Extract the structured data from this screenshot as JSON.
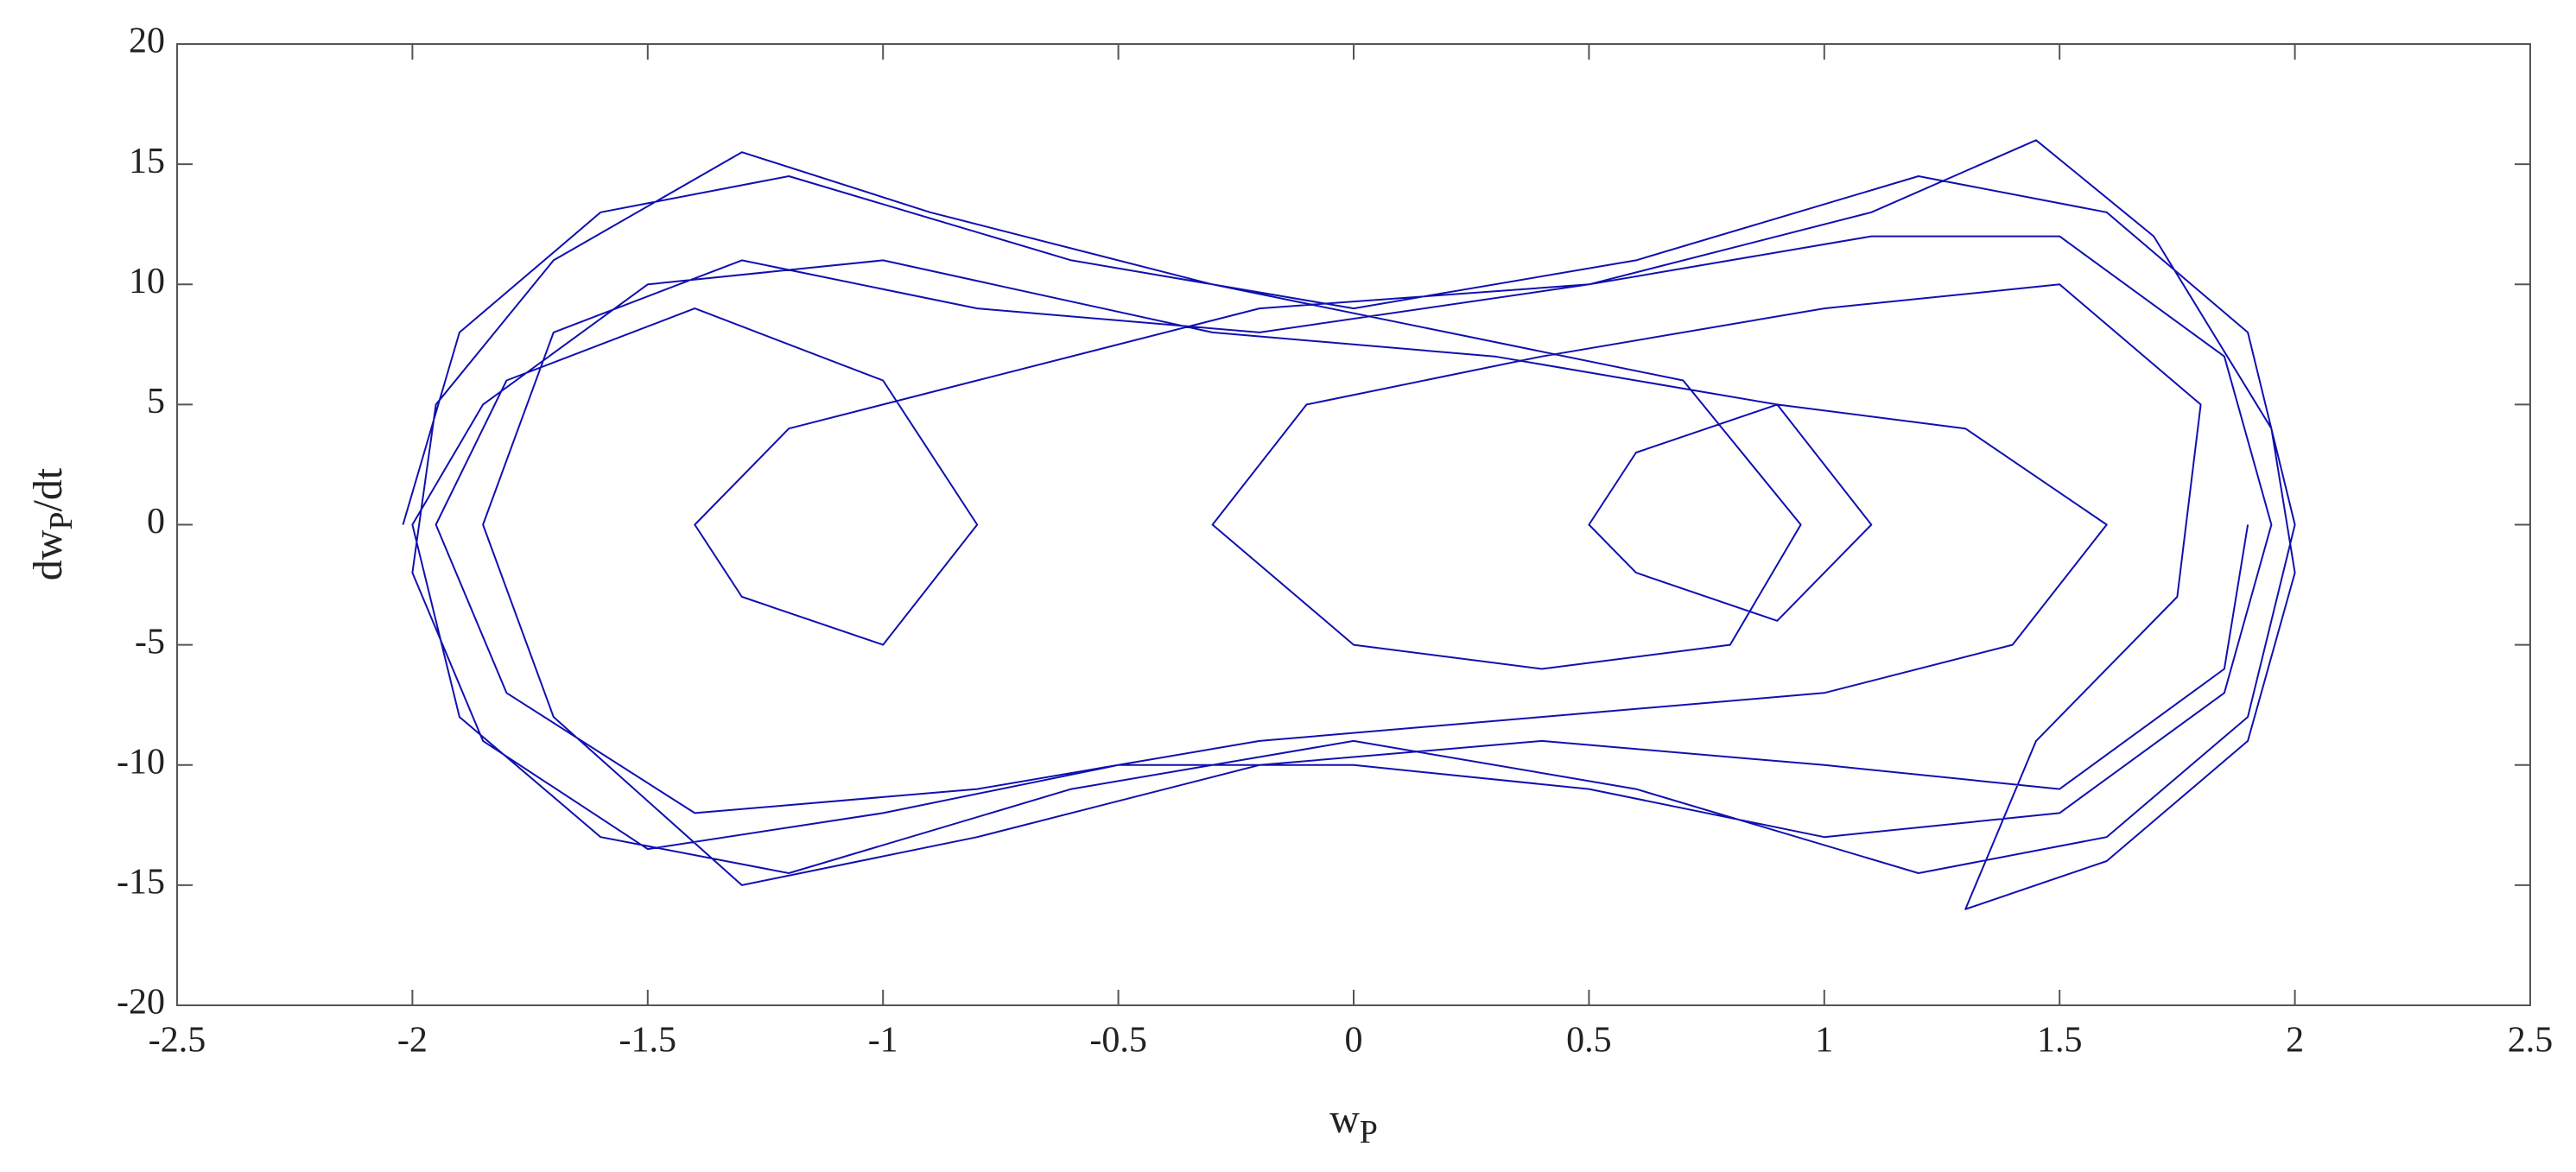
{
  "chart_data": {
    "type": "line",
    "xlabel": [
      "w",
      "P"
    ],
    "ylabel": [
      "dw",
      "P",
      "/dt"
    ],
    "xlim": [
      -2.5,
      2.5
    ],
    "xticks": [
      -2.5,
      -2,
      -1.5,
      -1,
      -0.5,
      0,
      0.5,
      1,
      1.5,
      2,
      2.5
    ],
    "ylim": [
      -20,
      20
    ],
    "yticks": [
      -20,
      -15,
      -10,
      -5,
      0,
      5,
      10,
      15,
      20
    ],
    "grid": false,
    "series": [
      {
        "color": "#1010b0",
        "x": [
          -2.02,
          -1.9,
          -1.6,
          -1.2,
          -0.6,
          0,
          0.6,
          1.2,
          1.6,
          1.9,
          2.0,
          1.9,
          1.6,
          1.2,
          0.6,
          0,
          -0.6,
          -1.2,
          -1.6,
          -1.9,
          -2.0,
          -1.85,
          -1.5,
          -1.0,
          -0.3,
          0.3,
          0.9,
          1.1,
          0.9,
          0.6,
          0.5,
          0.6,
          0.9,
          1.3,
          1.6,
          1.4,
          1.0,
          0.4,
          -0.2,
          -0.8,
          -1.4,
          -1.8,
          -1.95,
          -1.8,
          -1.4,
          -1.0,
          -0.8,
          -1.0,
          -1.3,
          -1.4,
          -1.2,
          -0.8,
          -0.2,
          0.5,
          1.1,
          1.5,
          1.85,
          1.95,
          1.85,
          1.5,
          1.0,
          0.5,
          0,
          -0.5,
          -1.0,
          -1.5,
          -1.85,
          -2.0,
          -1.95,
          -1.7,
          -1.3,
          -0.9,
          -0.3,
          0.2,
          0.7,
          0.95,
          0.8,
          0.4,
          0,
          -0.3,
          -0.1,
          0.4,
          1.0,
          1.5,
          1.8,
          1.75,
          1.45,
          1.3,
          1.6,
          1.9,
          2.0,
          1.95,
          1.7,
          1.45,
          1.1,
          0.5,
          -0.2,
          -0.8,
          -1.3,
          -1.7,
          -1.85,
          -1.7,
          -1.3,
          -0.8,
          -0.2,
          0.4,
          1.0,
          1.5,
          1.85,
          1.9
        ],
        "values": [
          0,
          8,
          13,
          14.5,
          11,
          9,
          11,
          14.5,
          13,
          8,
          0,
          -8,
          -13,
          -14.5,
          -11,
          -9,
          -11,
          -14.5,
          -13,
          -8,
          0,
          5,
          10,
          11,
          8,
          7,
          5,
          0,
          -4,
          -2,
          0,
          3,
          5,
          4,
          0,
          -5,
          -7,
          -8,
          -9,
          -11,
          -12,
          -7,
          0,
          6,
          9,
          6,
          0,
          -5,
          -3,
          0,
          4,
          6,
          9,
          10,
          12,
          12,
          7,
          0,
          -7,
          -12,
          -13,
          -11,
          -10,
          -10,
          -12,
          -13.5,
          -9,
          -2,
          5,
          11,
          15.5,
          13,
          10,
          8,
          6,
          0,
          -5,
          -6,
          -5,
          0,
          5,
          7,
          9,
          10,
          5,
          -3,
          -9,
          -16,
          -14,
          -9,
          -2,
          4,
          12,
          16,
          13,
          10,
          8,
          9,
          11,
          8,
          0,
          -8,
          -15,
          -13,
          -10,
          -9,
          -10,
          -11,
          -6,
          0
        ]
      }
    ]
  }
}
